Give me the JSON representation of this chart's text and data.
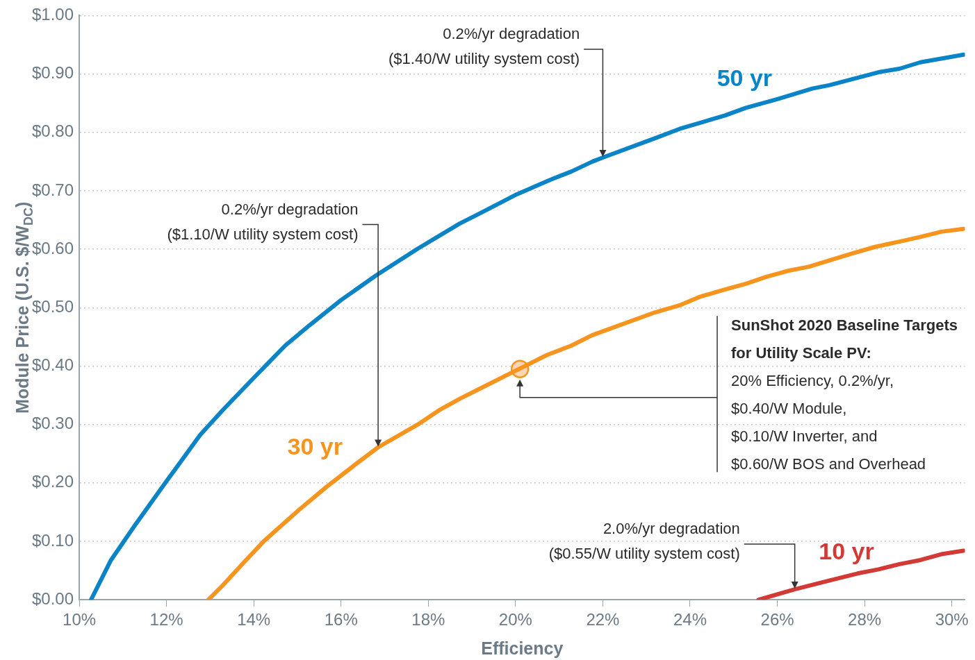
{
  "chart_data": {
    "type": "line",
    "xlabel": "Efficiency",
    "ylabel": "Module Price (U.S. $/W$_{DC}$)",
    "xlim": [
      10,
      30.3
    ],
    "ylim": [
      0,
      1.0
    ],
    "xticks": [
      {
        "value": 10,
        "label": "10%"
      },
      {
        "value": 12,
        "label": "12%"
      },
      {
        "value": 14,
        "label": "14%"
      },
      {
        "value": 16,
        "label": "16%"
      },
      {
        "value": 18,
        "label": "18%"
      },
      {
        "value": 20,
        "label": "20%"
      },
      {
        "value": 22,
        "label": "22%"
      },
      {
        "value": 24,
        "label": "24%"
      },
      {
        "value": 26,
        "label": "26%"
      },
      {
        "value": 28,
        "label": "28%"
      },
      {
        "value": 30,
        "label": "30%"
      }
    ],
    "yticks": [
      {
        "value": 0,
        "label": "$0.00"
      },
      {
        "value": 0.1,
        "label": "$0.10"
      },
      {
        "value": 0.2,
        "label": "$0.20"
      },
      {
        "value": 0.3,
        "label": "$0.30"
      },
      {
        "value": 0.4,
        "label": "$0.40"
      },
      {
        "value": 0.5,
        "label": "$0.50"
      },
      {
        "value": 0.6,
        "label": "$0.60"
      },
      {
        "value": 0.7,
        "label": "$0.70"
      },
      {
        "value": 0.8,
        "label": "$0.80"
      },
      {
        "value": 0.9,
        "label": "$0.90"
      },
      {
        "value": 1.0,
        "label": "$1.00"
      }
    ],
    "grid": "y",
    "legend": false,
    "line_style": "solid",
    "series": [
      {
        "name": "50 yr",
        "color": "#0a84c6",
        "x": [
          10.27,
          10.72,
          11.28,
          12.0,
          12.77,
          13.28,
          14.08,
          14.72,
          15.28,
          16.0,
          16.8,
          17.76,
          18.72,
          19.2,
          20.0,
          20.8,
          21.28,
          21.76,
          22.0,
          23.2,
          23.76,
          24.8,
          25.28,
          26.0,
          26.8,
          27.2,
          28.32,
          28.8,
          29.28,
          30.27
        ],
        "values": [
          0,
          0.067,
          0.128,
          0.203,
          0.282,
          0.324,
          0.386,
          0.435,
          0.47,
          0.513,
          0.555,
          0.601,
          0.644,
          0.662,
          0.693,
          0.719,
          0.733,
          0.75,
          0.757,
          0.79,
          0.806,
          0.829,
          0.842,
          0.857,
          0.875,
          0.881,
          0.903,
          0.909,
          0.92,
          0.933
        ]
      },
      {
        "name": "30 yr",
        "color": "#f7941d",
        "x": [
          12.96,
          13.28,
          13.76,
          14.24,
          15.04,
          15.68,
          16.32,
          16.85,
          17.76,
          18.24,
          18.72,
          19.2,
          20.08,
          20.72,
          21.28,
          21.76,
          23.2,
          23.76,
          24.24,
          24.8,
          25.28,
          25.76,
          26.24,
          26.72,
          27.68,
          28.24,
          28.8,
          29.28,
          29.76,
          30.27
        ],
        "values": [
          0,
          0.024,
          0.063,
          0.101,
          0.154,
          0.194,
          0.231,
          0.261,
          0.3,
          0.324,
          0.344,
          0.362,
          0.395,
          0.419,
          0.435,
          0.453,
          0.492,
          0.504,
          0.519,
          0.531,
          0.541,
          0.553,
          0.563,
          0.57,
          0.592,
          0.604,
          0.613,
          0.621,
          0.63,
          0.635
        ]
      },
      {
        "name": "10 yr",
        "color": "#d13a35",
        "x": [
          25.57,
          26.4,
          27.2,
          27.84,
          28.32,
          28.8,
          29.28,
          29.76,
          30.27
        ],
        "values": [
          0,
          0.018,
          0.033,
          0.045,
          0.052,
          0.061,
          0.068,
          0.078,
          0.084
        ]
      },
      {
        "type": "scatter",
        "color": "#f7941d",
        "x": [
          20.1
        ],
        "values": [
          0.395
        ]
      }
    ],
    "annotations": [
      {
        "text": "0.2%/yr degradation\n($1.40/W utility system cost)",
        "x": 22,
        "y": 0.757
      },
      {
        "text": "0.2%/yr degradation\n($1.10/W utility system cost)",
        "x": 16.85,
        "y": 0.261
      },
      {
        "text": "2.0%/yr degradation\n($0.55/W utility system cost)",
        "x": 26.4,
        "y": 0.018
      },
      {
        "text": "SunShot 2020 Baseline Targets\nfor Utility Scale PV:\n20% Efficiency, 0.2%/yr,\n$0.40/W Module,\n$0.10/W Inverter, and\n$0.60/W BOS and Overhead"
      }
    ]
  }
}
